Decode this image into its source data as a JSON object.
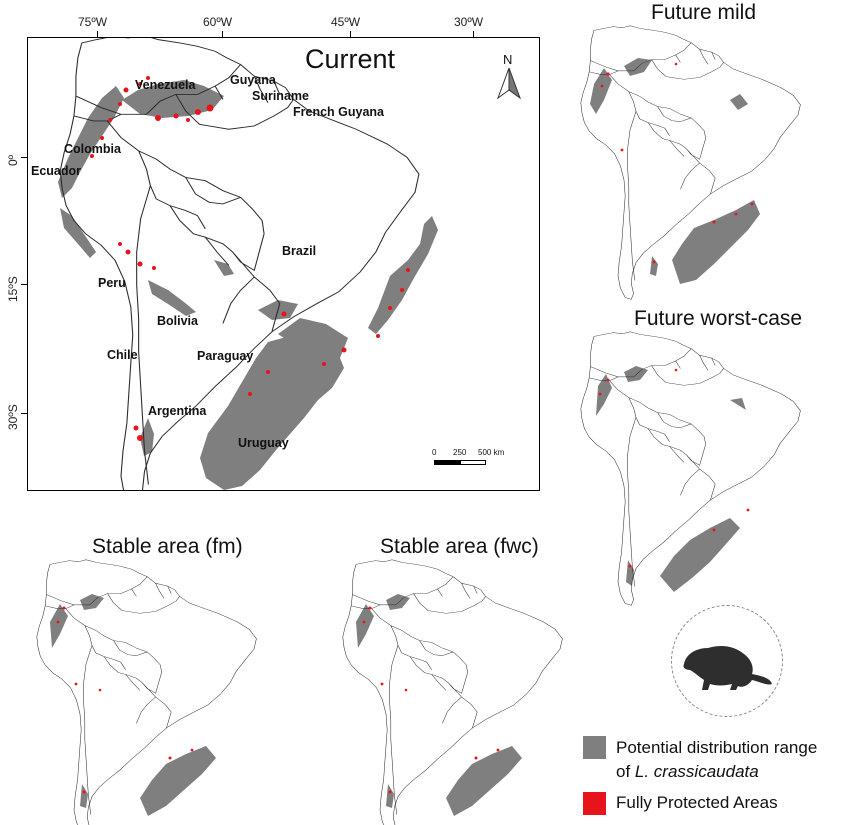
{
  "colors": {
    "distribution": "#7f7f7f",
    "protected": "#e8141b",
    "outline": "#2b2b2b",
    "frame": "#000000"
  },
  "main_map": {
    "title": "Current",
    "north_label": "N",
    "lon_ticks": [
      "75ºW",
      "60ºW",
      "45ºW",
      "30ºW"
    ],
    "lat_ticks": [
      "0º",
      "15ºS",
      "30ºS"
    ],
    "countries": [
      "Venezuela",
      "Guyana",
      "Suriname",
      "French Guyana",
      "Colombia",
      "Ecuador",
      "Brazil",
      "Peru",
      "Bolivia",
      "Chile",
      "Paraguay",
      "Argentina",
      "Uruguay"
    ],
    "scale_bar": {
      "labels": [
        "0",
        "250",
        "500 km"
      ]
    }
  },
  "panels": {
    "future_mild": "Future mild",
    "future_worst": "Future worst-case",
    "stable_fm": "Stable area (fm)",
    "stable_fwc": "Stable area (fwc)"
  },
  "legend": {
    "distribution_line1": "Potential distribution range",
    "distribution_line2_prefix": "of ",
    "distribution_line2_species": "L. crassicaudata",
    "protected": "Fully Protected Areas"
  },
  "icons": {
    "north_arrow": "north-arrow-icon",
    "species": "mouse-opossum-silhouette-icon"
  }
}
